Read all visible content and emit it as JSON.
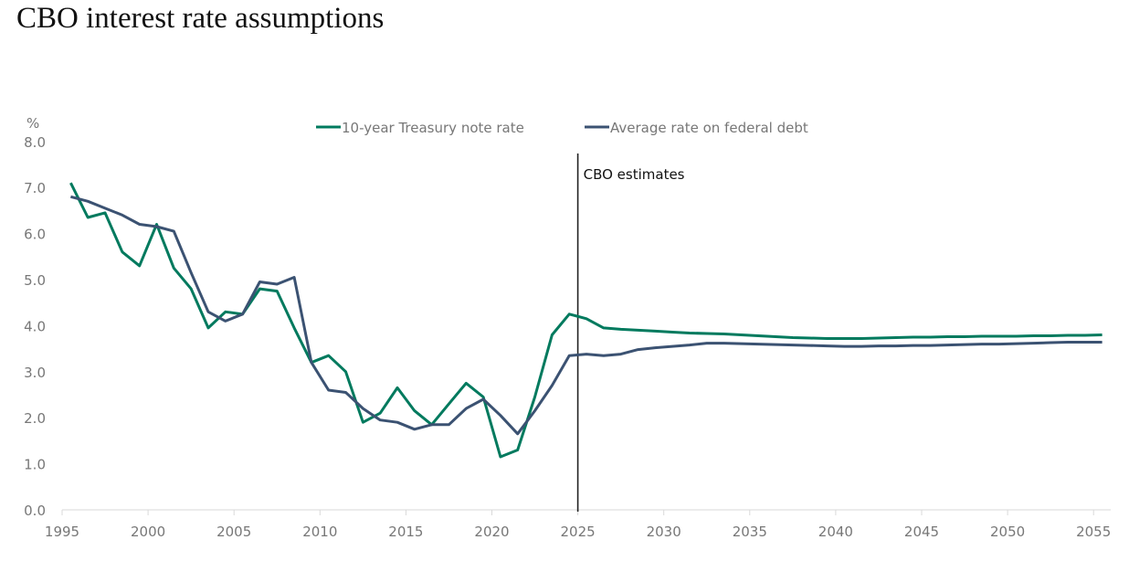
{
  "chart_data": {
    "type": "line",
    "title": "CBO interest rate assumptions",
    "ylabel": "%",
    "xlabel": "",
    "ylim": [
      0,
      8
    ],
    "xlim": [
      1995,
      2055
    ],
    "yticks": [
      "0.0",
      "1.0",
      "2.0",
      "3.0",
      "4.0",
      "5.0",
      "6.0",
      "7.0",
      "8.0"
    ],
    "xticks": [
      "1995",
      "2000",
      "2005",
      "2010",
      "2015",
      "2020",
      "2025",
      "2030",
      "2035",
      "2040",
      "2045",
      "2050",
      "2055"
    ],
    "grid": false,
    "legend_placement": "top-center",
    "annotation": {
      "label": "CBO estimates",
      "x": 2025
    },
    "x": [
      1995,
      1996,
      1997,
      1998,
      1999,
      2000,
      2001,
      2002,
      2003,
      2004,
      2005,
      2006,
      2007,
      2008,
      2009,
      2010,
      2011,
      2012,
      2013,
      2014,
      2015,
      2016,
      2017,
      2018,
      2019,
      2020,
      2021,
      2022,
      2023,
      2024,
      2025,
      2026,
      2027,
      2028,
      2029,
      2030,
      2031,
      2032,
      2033,
      2034,
      2035,
      2036,
      2037,
      2038,
      2039,
      2040,
      2041,
      2042,
      2043,
      2044,
      2045,
      2046,
      2047,
      2048,
      2049,
      2050,
      2051,
      2052,
      2053,
      2054,
      2055
    ],
    "series": [
      {
        "name": "10-year Treasury note rate",
        "color": "#007a5e",
        "values": [
          7.1,
          6.35,
          6.45,
          5.6,
          5.3,
          6.2,
          5.25,
          4.8,
          3.95,
          4.3,
          4.25,
          4.8,
          4.75,
          3.95,
          3.2,
          3.35,
          3.0,
          1.9,
          2.1,
          2.65,
          2.15,
          1.85,
          2.3,
          2.75,
          2.45,
          1.15,
          1.3,
          2.45,
          3.8,
          4.25,
          4.15,
          3.95,
          3.92,
          3.9,
          3.88,
          3.86,
          3.84,
          3.83,
          3.82,
          3.8,
          3.78,
          3.76,
          3.74,
          3.73,
          3.72,
          3.72,
          3.72,
          3.73,
          3.74,
          3.75,
          3.75,
          3.76,
          3.76,
          3.77,
          3.77,
          3.77,
          3.78,
          3.78,
          3.79,
          3.79,
          3.8
        ]
      },
      {
        "name": "Average rate on federal debt",
        "color": "#3b5272",
        "values": [
          6.8,
          6.7,
          6.55,
          6.4,
          6.2,
          6.15,
          6.05,
          5.15,
          4.3,
          4.1,
          4.25,
          4.95,
          4.9,
          5.05,
          3.2,
          2.6,
          2.55,
          2.2,
          1.95,
          1.9,
          1.75,
          1.85,
          1.85,
          2.2,
          2.4,
          2.05,
          1.65,
          2.15,
          2.7,
          3.35,
          3.38,
          3.35,
          3.38,
          3.48,
          3.52,
          3.55,
          3.58,
          3.62,
          3.62,
          3.61,
          3.6,
          3.59,
          3.58,
          3.57,
          3.56,
          3.55,
          3.55,
          3.56,
          3.56,
          3.57,
          3.57,
          3.58,
          3.59,
          3.6,
          3.6,
          3.61,
          3.62,
          3.63,
          3.64,
          3.64,
          3.64
        ]
      }
    ]
  }
}
